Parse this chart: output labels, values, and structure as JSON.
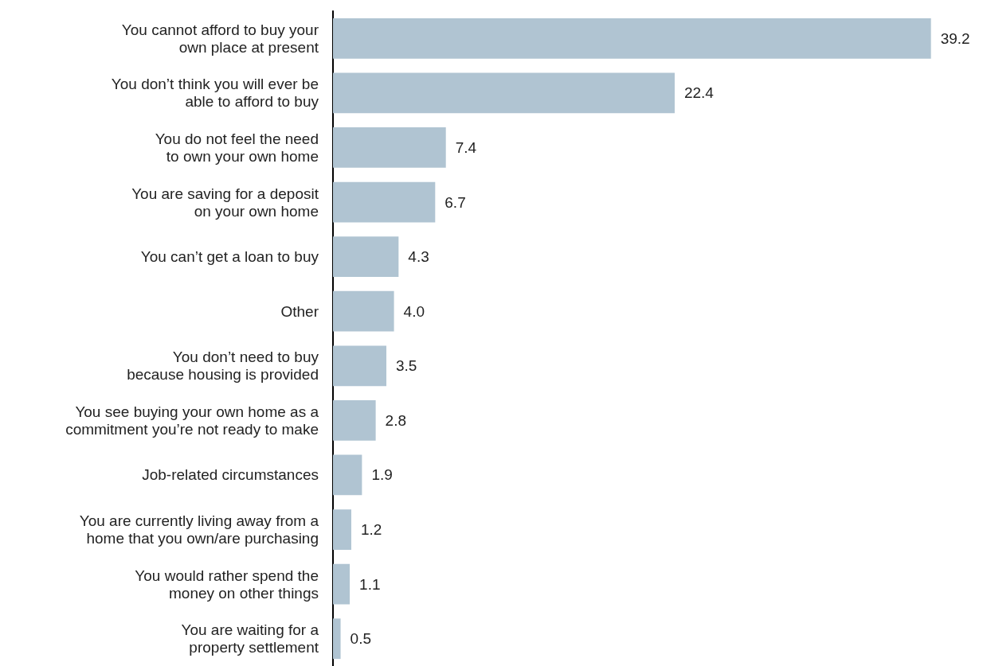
{
  "chart_data": {
    "type": "bar",
    "orientation": "horizontal",
    "value_labels": [
      "39.2",
      "22.4",
      "7.4",
      "6.7",
      "4.3",
      "4.0",
      "3.5",
      "2.8",
      "1.9",
      "1.2",
      "1.1",
      "0.5"
    ],
    "categories": [
      "You cannot afford to buy your\nown place at present",
      "You don’t think you will ever be\nable to afford to buy",
      "You do not feel the need\nto own your own home",
      "You are saving for a deposit\non your own home",
      "You can’t get a loan to buy",
      "Other",
      "You don’t need to buy\nbecause housing is provided",
      "You see buying your own home as a\ncommitment you’re not ready to make",
      "Job-related circumstances",
      "You are currently living away from a\nhome that you own/are purchasing",
      "You would rather spend the\nmoney on other things",
      "You are waiting for a\nproperty settlement"
    ],
    "values": [
      39.2,
      22.4,
      7.4,
      6.7,
      4.3,
      4.0,
      3.5,
      2.8,
      1.9,
      1.2,
      1.1,
      0.5
    ],
    "color": "#b0c4d2"
  }
}
